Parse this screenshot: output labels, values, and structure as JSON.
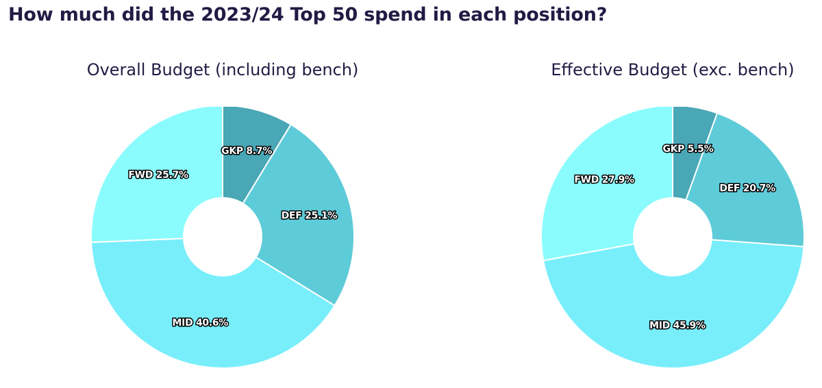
{
  "page": {
    "title": "How much did the 2023/24 Top 50 spend in each position?"
  },
  "chart_data": [
    {
      "type": "pie",
      "donut": true,
      "title": "Overall Budget (including bench)",
      "start": "12 o'clock, clockwise",
      "slices": [
        {
          "label": "GKP",
          "value": 8.7,
          "display": "GKP 8.7%",
          "color": "#4aa7b5"
        },
        {
          "label": "DEF",
          "value": 25.1,
          "display": "DEF 25.1%",
          "color": "#5ecbd8"
        },
        {
          "label": "MID",
          "value": 40.6,
          "display": "MID 40.6%",
          "color": "#78eefb"
        },
        {
          "label": "FWD",
          "value": 25.7,
          "display": "FWD 25.7%",
          "color": "#8afcfd"
        }
      ]
    },
    {
      "type": "pie",
      "donut": true,
      "title": "Effective Budget (exc. bench)",
      "start": "12 o'clock, clockwise",
      "slices": [
        {
          "label": "GKP",
          "value": 5.5,
          "display": "GKP 5.5%",
          "color": "#4aa7b5"
        },
        {
          "label": "DEF",
          "value": 20.7,
          "display": "DEF 20.7%",
          "color": "#5ecbd8"
        },
        {
          "label": "MID",
          "value": 45.9,
          "display": "MID 45.9%",
          "color": "#78eefb"
        },
        {
          "label": "FWD",
          "value": 27.9,
          "display": "FWD 27.9%",
          "color": "#8afcfd"
        }
      ]
    }
  ]
}
